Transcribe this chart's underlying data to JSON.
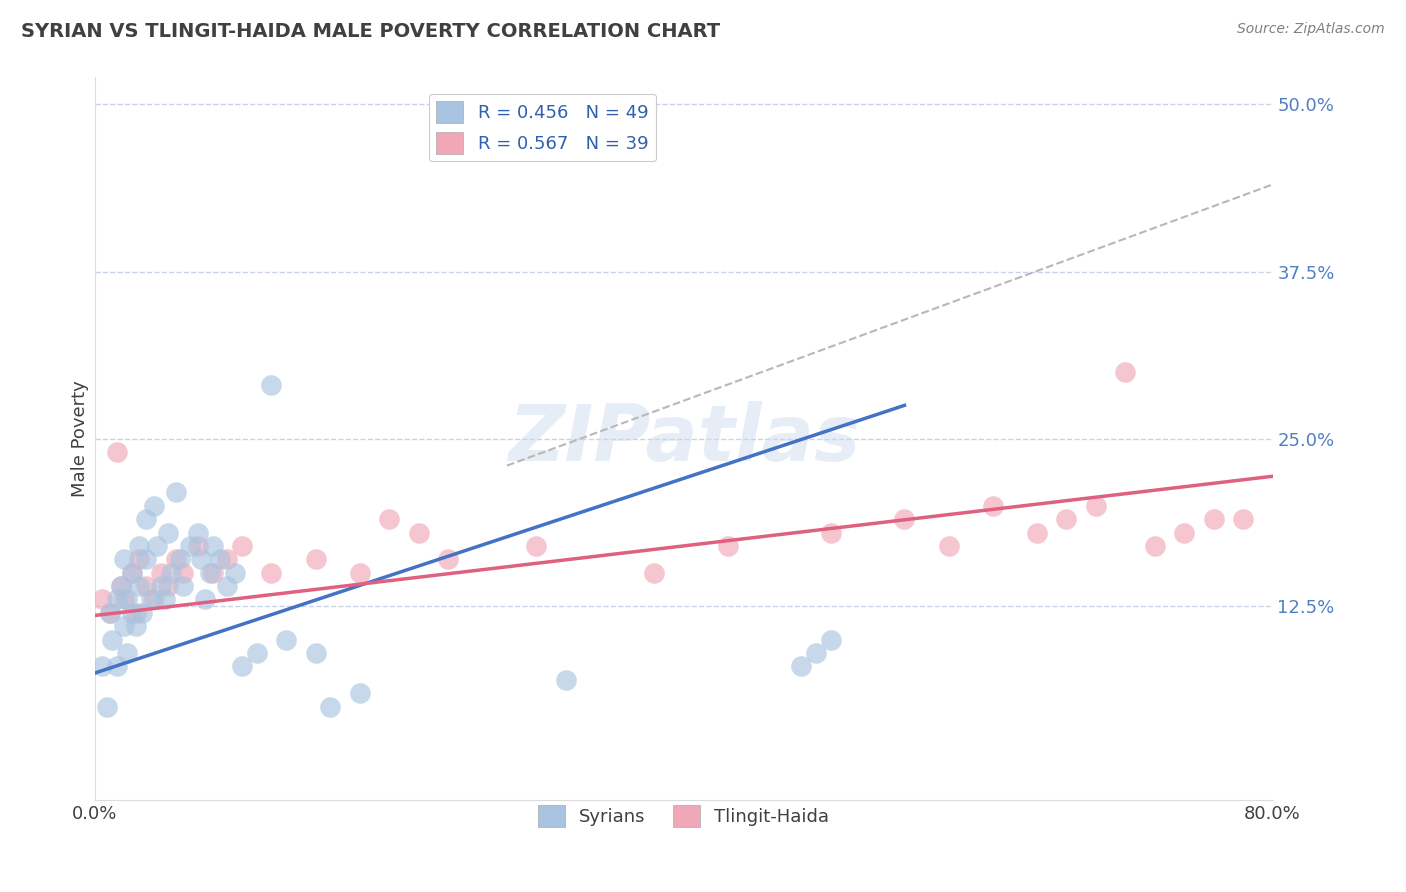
{
  "title": "SYRIAN VS TLINGIT-HAIDA MALE POVERTY CORRELATION CHART",
  "source": "Source: ZipAtlas.com",
  "ylabel": "Male Poverty",
  "xmin": 0.0,
  "xmax": 0.8,
  "ymin": -0.02,
  "ymax": 0.52,
  "yticks": [
    0.125,
    0.25,
    0.375,
    0.5
  ],
  "ytick_labels": [
    "12.5%",
    "25.0%",
    "37.5%",
    "50.0%"
  ],
  "xticks": [
    0.0,
    0.8
  ],
  "xtick_labels": [
    "0.0%",
    "80.0%"
  ],
  "legend_r1": "R = 0.456   N = 49",
  "legend_r2": "R = 0.567   N = 39",
  "legend_label1": "Syrians",
  "legend_label2": "Tlingit-Haida",
  "scatter_color_1": "#a8c4e0",
  "scatter_color_2": "#f0a8b8",
  "line_color_1": "#4472c4",
  "line_color_2": "#e06080",
  "ref_line_color": "#b8b8b8",
  "background_color": "#ffffff",
  "grid_color": "#c8d4e8",
  "blue_line_x": [
    0.0,
    0.55
  ],
  "blue_line_y": [
    0.075,
    0.275
  ],
  "pink_line_x": [
    0.0,
    0.8
  ],
  "pink_line_y": [
    0.118,
    0.222
  ],
  "ref_line_x": [
    0.28,
    0.8
  ],
  "ref_line_y": [
    0.23,
    0.44
  ],
  "syrians_x": [
    0.005,
    0.008,
    0.01,
    0.012,
    0.015,
    0.015,
    0.018,
    0.02,
    0.02,
    0.022,
    0.022,
    0.025,
    0.025,
    0.028,
    0.03,
    0.03,
    0.032,
    0.035,
    0.035,
    0.038,
    0.04,
    0.042,
    0.045,
    0.048,
    0.05,
    0.052,
    0.055,
    0.058,
    0.06,
    0.065,
    0.07,
    0.072,
    0.075,
    0.078,
    0.08,
    0.085,
    0.09,
    0.095,
    0.1,
    0.11,
    0.12,
    0.13,
    0.15,
    0.16,
    0.18,
    0.32,
    0.48,
    0.49,
    0.5
  ],
  "syrians_y": [
    0.08,
    0.05,
    0.12,
    0.1,
    0.13,
    0.08,
    0.14,
    0.11,
    0.16,
    0.13,
    0.09,
    0.15,
    0.12,
    0.11,
    0.17,
    0.14,
    0.12,
    0.19,
    0.16,
    0.13,
    0.2,
    0.17,
    0.14,
    0.13,
    0.18,
    0.15,
    0.21,
    0.16,
    0.14,
    0.17,
    0.18,
    0.16,
    0.13,
    0.15,
    0.17,
    0.16,
    0.14,
    0.15,
    0.08,
    0.09,
    0.29,
    0.1,
    0.09,
    0.05,
    0.06,
    0.07,
    0.08,
    0.09,
    0.1
  ],
  "tlingit_x": [
    0.005,
    0.01,
    0.015,
    0.018,
    0.02,
    0.025,
    0.028,
    0.03,
    0.035,
    0.04,
    0.045,
    0.05,
    0.055,
    0.06,
    0.07,
    0.08,
    0.09,
    0.1,
    0.12,
    0.15,
    0.18,
    0.2,
    0.22,
    0.24,
    0.3,
    0.38,
    0.43,
    0.5,
    0.55,
    0.58,
    0.61,
    0.64,
    0.66,
    0.68,
    0.7,
    0.72,
    0.74,
    0.76,
    0.78
  ],
  "tlingit_y": [
    0.13,
    0.12,
    0.24,
    0.14,
    0.13,
    0.15,
    0.12,
    0.16,
    0.14,
    0.13,
    0.15,
    0.14,
    0.16,
    0.15,
    0.17,
    0.15,
    0.16,
    0.17,
    0.15,
    0.16,
    0.15,
    0.19,
    0.18,
    0.16,
    0.17,
    0.15,
    0.17,
    0.18,
    0.19,
    0.17,
    0.2,
    0.18,
    0.19,
    0.2,
    0.3,
    0.17,
    0.18,
    0.19,
    0.19
  ]
}
